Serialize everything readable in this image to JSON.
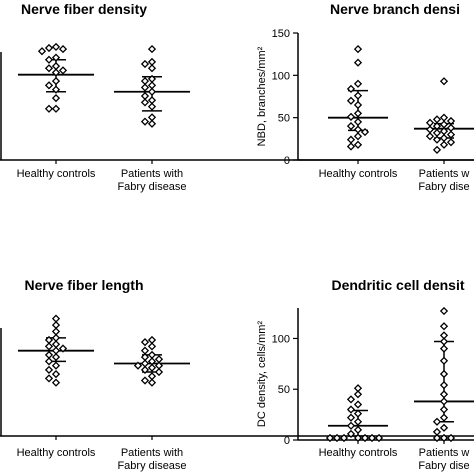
{
  "chart_data": [
    {
      "type": "scatter",
      "title": "Nerve fiber density",
      "ylabel": "",
      "ylim": [
        0,
        60
      ],
      "categories": [
        "Healthy controls",
        "Patients with\nFabry disease"
      ],
      "groups": [
        {
          "category": "Healthy controls",
          "values": [
            53,
            52.5,
            52,
            51,
            48,
            47,
            44,
            43,
            42,
            41,
            37,
            35,
            33,
            29,
            24,
            24
          ],
          "mean": 40,
          "sd_upper": 47,
          "sd_lower": 32
        },
        {
          "category": "Patients with Fabry disease",
          "values": [
            52,
            46,
            45,
            43,
            38,
            37,
            35,
            34,
            32,
            30,
            28,
            27,
            25,
            20,
            18,
            17
          ],
          "mean": 32,
          "sd_upper": 39,
          "sd_lower": 23
        }
      ]
    },
    {
      "type": "scatter",
      "title": "Nerve branch densi",
      "ylabel": "NBD, branches/mm²",
      "ylim": [
        0,
        150
      ],
      "yticks": [
        0,
        50,
        100,
        150
      ],
      "categories": [
        "Healthy controls",
        "Patients w\nFabry dise"
      ],
      "groups": [
        {
          "category": "Healthy controls",
          "values": [
            131,
            115,
            90,
            84,
            76,
            70,
            65,
            55,
            51,
            45,
            40,
            36,
            33,
            28,
            24,
            18,
            16
          ],
          "mean": 50,
          "sd_upper": 82,
          "sd_lower": 35
        },
        {
          "category": "Patients w Fabry dise",
          "values": [
            93,
            50,
            48,
            46,
            44,
            42,
            40,
            38,
            36,
            34,
            32,
            30,
            28,
            26,
            24,
            21,
            18,
            12
          ],
          "mean": 37,
          "sd_upper": 43,
          "sd_lower": 26
        }
      ]
    },
    {
      "type": "scatter",
      "title": "Nerve fiber length",
      "ylabel": "",
      "ylim": [
        0,
        60
      ],
      "categories": [
        "Healthy controls",
        "Patients with\nFabry disease"
      ],
      "groups": [
        {
          "category": "Healthy controls",
          "values": [
            55,
            52,
            49,
            46,
            45,
            43,
            42,
            41,
            40,
            38,
            37,
            35,
            33,
            31,
            29,
            27,
            25
          ],
          "mean": 40,
          "sd_upper": 46,
          "sd_lower": 35
        },
        {
          "category": "Patients with Fabry disease",
          "values": [
            45,
            44,
            42,
            40,
            38,
            37,
            36,
            35,
            34,
            33,
            33,
            32,
            31,
            30,
            28,
            26,
            25
          ],
          "mean": 34,
          "sd_upper": 38,
          "sd_lower": 30
        }
      ]
    },
    {
      "type": "scatter",
      "title": "Dendritic cell densit",
      "ylabel": "DC density, cells/mm²",
      "ylim": [
        0,
        130
      ],
      "yticks": [
        0,
        50,
        100
      ],
      "categories": [
        "Healthy controls",
        "Patients w\nFabry dise"
      ],
      "groups": [
        {
          "category": "Healthy controls",
          "values": [
            51,
            45,
            40,
            35,
            30,
            26,
            22,
            18,
            14,
            10,
            6,
            2,
            2,
            2,
            2,
            2,
            2,
            2
          ],
          "mean": 14,
          "sd_upper": 29,
          "sd_lower": 4
        },
        {
          "category": "Patients w Fabry dise",
          "values": [
            127,
            112,
            103,
            97,
            90,
            78,
            65,
            54,
            45,
            38,
            30,
            22,
            18,
            12,
            8,
            2,
            2,
            2
          ],
          "mean": 38,
          "sd_upper": 97,
          "sd_lower": 18
        }
      ]
    }
  ]
}
